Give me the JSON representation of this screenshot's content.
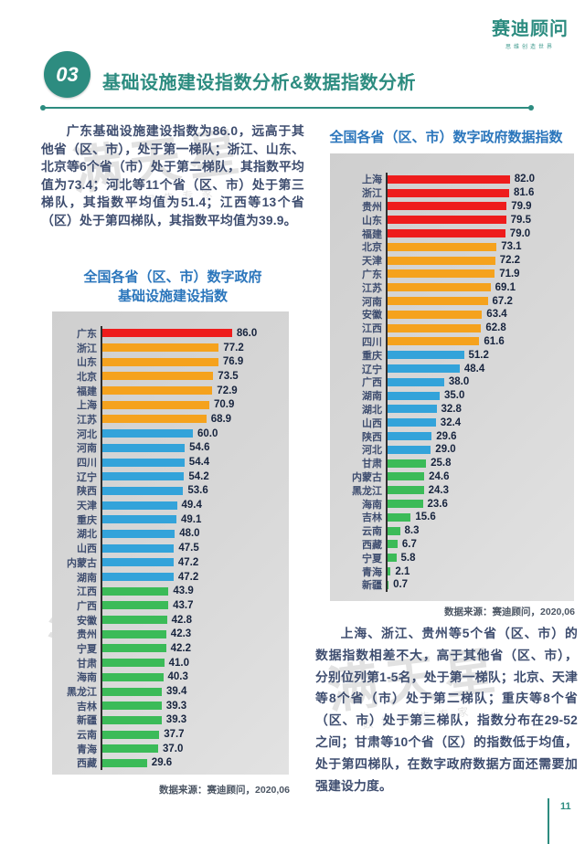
{
  "logo": {
    "name": "赛迪顾问",
    "tagline": "思维创造世界"
  },
  "section": {
    "number": "03",
    "title": "基础设施建设指数分析&数据指数分析"
  },
  "texts": {
    "left_paragraph": "广东基础设施建设指数为86.0，远高于其他省（区、市），处于第一梯队；浙江、山东、北京等6个省（市）处于第二梯队，其指数平均值为73.4；河北等11个省（区、市）处于第三梯队，其指数平均值为51.4；江西等13个省（区）处于第四梯队，其指数平均值为39.9。",
    "right_paragraph": "上海、浙江、贵州等5个省（区、市）的数据指数相差不大，高于其他省（区、市），分别位列第1-5名，处于第一梯队；北京、天津等8个省（市）处于第二梯队；重庆等8个省（区、市）处于第三梯队，指数分布在29-52之间；甘肃等10个省（区）的指数低于均值，处于第四梯队，在数字政府数据方面还需要加强建设力度。"
  },
  "watermark": {
    "text": "满天星",
    "subtext": "数据报告专家"
  },
  "page_number": "11",
  "colors": {
    "teal": "#2D8C80",
    "title_blue": "#2B76BC",
    "text_navy": "#3E4D6F",
    "tier_palette": {
      "1": "#EE1C1C",
      "2": "#F5A21D",
      "3": "#33A3DA",
      "4": "#3BBB58"
    }
  },
  "chart_data": [
    {
      "type": "bar",
      "orientation": "horizontal",
      "title": "全国各省（区、市）数字政府基础设施建设指数",
      "title_lines": [
        "全国各省（区、市）数字政府",
        "基础设施建设指数"
      ],
      "source": "数据来源：赛迪顾问，2020,06",
      "xlim": [
        0,
        95
      ],
      "grid": false,
      "legend": "none",
      "categories": [
        "广东",
        "浙江",
        "山东",
        "北京",
        "福建",
        "上海",
        "江苏",
        "河北",
        "河南",
        "四川",
        "辽宁",
        "陕西",
        "天津",
        "重庆",
        "湖北",
        "山西",
        "内蒙古",
        "湖南",
        "江西",
        "广西",
        "安徽",
        "贵州",
        "宁夏",
        "甘肃",
        "海南",
        "黑龙江",
        "吉林",
        "新疆",
        "云南",
        "青海",
        "西藏"
      ],
      "values": [
        86.0,
        77.2,
        76.9,
        73.5,
        72.9,
        70.9,
        68.9,
        60.0,
        54.6,
        54.4,
        54.2,
        53.6,
        49.4,
        49.1,
        48.0,
        47.5,
        47.2,
        47.2,
        43.9,
        43.7,
        42.8,
        42.3,
        42.2,
        41.0,
        40.3,
        39.4,
        39.3,
        39.3,
        37.7,
        37.0,
        29.6
      ],
      "tiers": [
        1,
        2,
        2,
        2,
        2,
        2,
        2,
        3,
        3,
        3,
        3,
        3,
        3,
        3,
        3,
        3,
        3,
        3,
        4,
        4,
        4,
        4,
        4,
        4,
        4,
        4,
        4,
        4,
        4,
        4,
        4
      ]
    },
    {
      "type": "bar",
      "orientation": "horizontal",
      "title": "全国各省（区、市）数字政府数据指数",
      "source": "数据来源：赛迪顾问，2020,06",
      "xlim": [
        0,
        95
      ],
      "grid": false,
      "legend": "none",
      "categories": [
        "上海",
        "浙江",
        "贵州",
        "山东",
        "福建",
        "北京",
        "天津",
        "广东",
        "江苏",
        "河南",
        "安徽",
        "江西",
        "四川",
        "重庆",
        "辽宁",
        "广西",
        "湖南",
        "湖北",
        "山西",
        "陕西",
        "河北",
        "甘肃",
        "内蒙古",
        "黑龙江",
        "海南",
        "吉林",
        "云南",
        "西藏",
        "宁夏",
        "青海",
        "新疆"
      ],
      "values": [
        82.0,
        81.6,
        79.9,
        79.5,
        79.0,
        73.1,
        72.2,
        71.9,
        69.1,
        67.2,
        63.4,
        62.8,
        61.6,
        51.2,
        48.4,
        38.0,
        35.0,
        32.8,
        32.4,
        29.6,
        29.0,
        25.8,
        24.6,
        24.3,
        23.6,
        15.6,
        8.3,
        6.7,
        5.8,
        2.1,
        0.7
      ],
      "tiers": [
        1,
        1,
        1,
        1,
        1,
        2,
        2,
        2,
        2,
        2,
        2,
        2,
        2,
        3,
        3,
        3,
        3,
        3,
        3,
        3,
        3,
        4,
        4,
        4,
        4,
        4,
        4,
        4,
        4,
        4,
        4
      ]
    }
  ]
}
